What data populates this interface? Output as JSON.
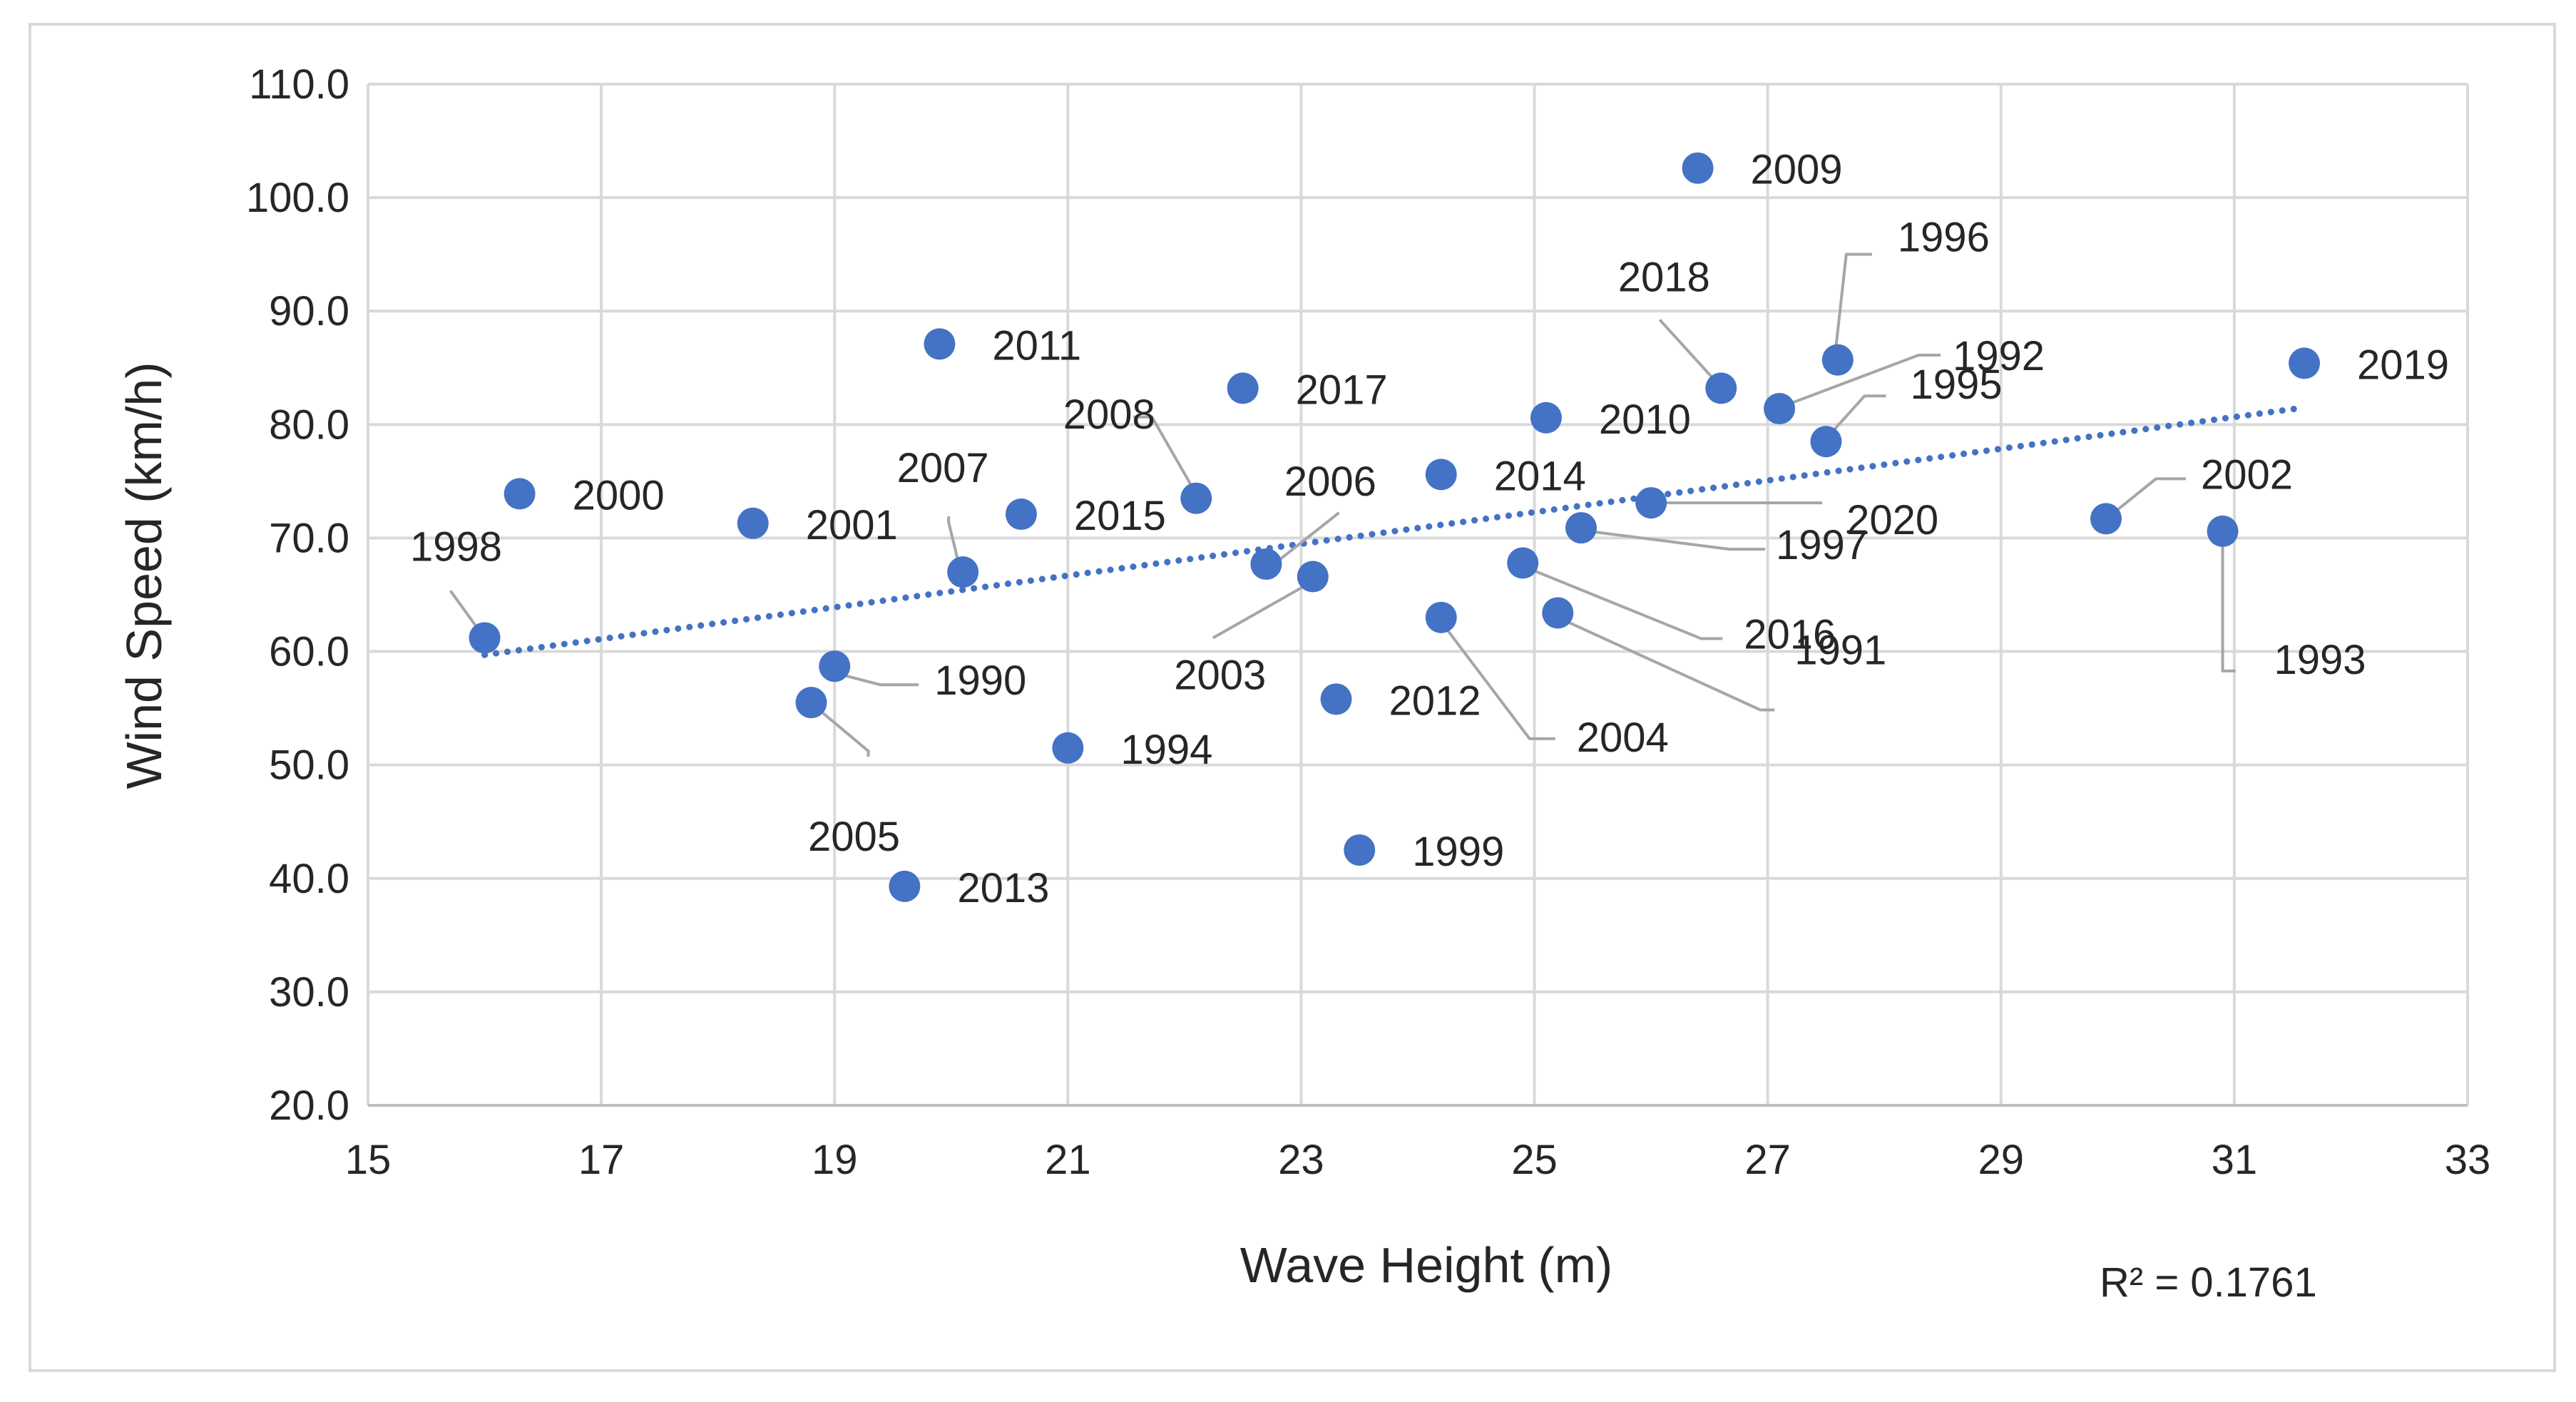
{
  "chart_data": {
    "type": "scatter",
    "title": "",
    "xlabel": "Wave Height (m)",
    "ylabel": "Wind Speed (km/h)",
    "xlim": [
      15,
      33
    ],
    "ylim": [
      20,
      110
    ],
    "xticks": [
      "15",
      "17",
      "19",
      "21",
      "23",
      "25",
      "27",
      "29",
      "31",
      "33"
    ],
    "yticks": [
      "20.0",
      "30.0",
      "40.0",
      "50.0",
      "60.0",
      "70.0",
      "80.0",
      "90.0",
      "100.0",
      "110.0"
    ],
    "grid": true,
    "legend": "none",
    "marker_color": "#4472c4",
    "leader_color": "#a6a6a6",
    "points": [
      {
        "label": "1990",
        "x": 19.0,
        "y": 58.7
      },
      {
        "label": "1991",
        "x": 25.2,
        "y": 63.4
      },
      {
        "label": "1992",
        "x": 27.1,
        "y": 81.4
      },
      {
        "label": "1993",
        "x": 30.9,
        "y": 70.6
      },
      {
        "label": "1994",
        "x": 21.0,
        "y": 51.5
      },
      {
        "label": "1995",
        "x": 27.5,
        "y": 78.5
      },
      {
        "label": "1996",
        "x": 27.6,
        "y": 85.7
      },
      {
        "label": "1997",
        "x": 25.4,
        "y": 70.9
      },
      {
        "label": "1998",
        "x": 16.0,
        "y": 61.2
      },
      {
        "label": "1999",
        "x": 23.5,
        "y": 42.5
      },
      {
        "label": "2000",
        "x": 16.3,
        "y": 73.9
      },
      {
        "label": "2001",
        "x": 18.3,
        "y": 71.3
      },
      {
        "label": "2002",
        "x": 29.9,
        "y": 71.7
      },
      {
        "label": "2003",
        "x": 23.1,
        "y": 66.6
      },
      {
        "label": "2004",
        "x": 24.2,
        "y": 63.0
      },
      {
        "label": "2005",
        "x": 18.8,
        "y": 55.5
      },
      {
        "label": "2006",
        "x": 22.7,
        "y": 67.7
      },
      {
        "label": "2007",
        "x": 20.1,
        "y": 67.0
      },
      {
        "label": "2008",
        "x": 22.1,
        "y": 73.5
      },
      {
        "label": "2009",
        "x": 26.4,
        "y": 102.6
      },
      {
        "label": "2010",
        "x": 25.1,
        "y": 80.6
      },
      {
        "label": "2011",
        "x": 19.9,
        "y": 87.1
      },
      {
        "label": "2012",
        "x": 23.3,
        "y": 55.8
      },
      {
        "label": "2013",
        "x": 19.6,
        "y": 39.3
      },
      {
        "label": "2014",
        "x": 24.2,
        "y": 75.6
      },
      {
        "label": "2015",
        "x": 20.6,
        "y": 72.1
      },
      {
        "label": "2016",
        "x": 24.9,
        "y": 67.8
      },
      {
        "label": "2017",
        "x": 22.5,
        "y": 83.2
      },
      {
        "label": "2018",
        "x": 26.6,
        "y": 83.2
      },
      {
        "label": "2019",
        "x": 31.6,
        "y": 85.4
      },
      {
        "label": "2020",
        "x": 26.0,
        "y": 73.1
      }
    ],
    "trendline": {
      "type": "linear",
      "x": [
        16.0,
        31.6
      ],
      "y": [
        59.7,
        81.5
      ],
      "color": "#4472c4",
      "style": "dotted",
      "r_squared_label": "R² = 0.1761"
    }
  }
}
